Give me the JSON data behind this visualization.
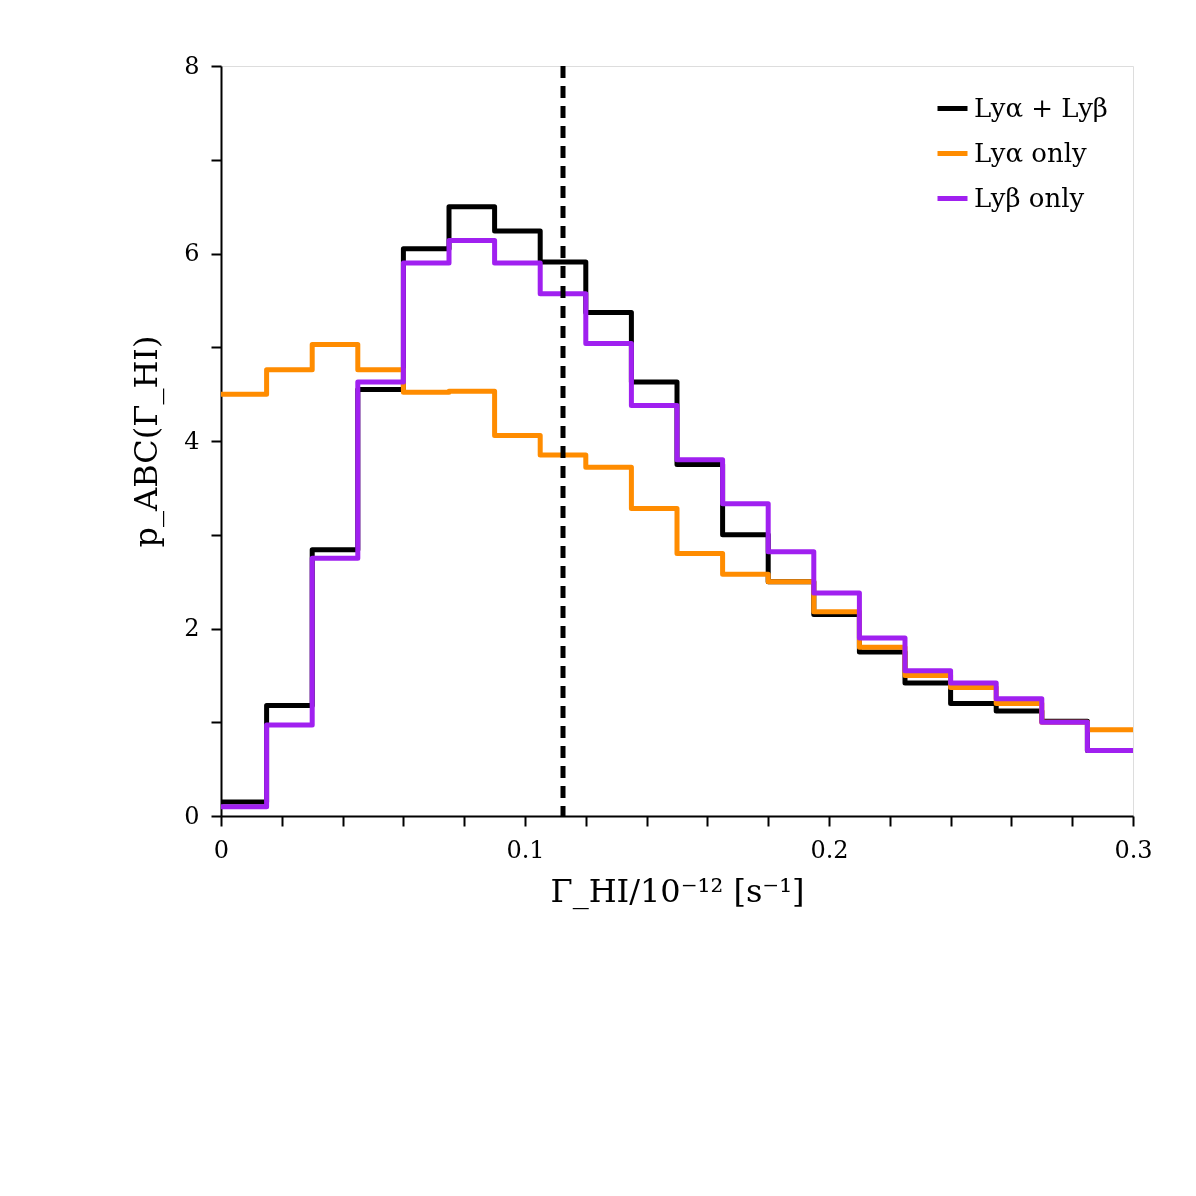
{
  "chart_data": {
    "type": "histogram",
    "xlabel": "Γ_HI/10⁻¹² [s⁻¹]",
    "ylabel": "p_ABC(Γ_HI)",
    "bins": [
      0,
      0.015,
      0.03,
      0.045,
      0.06,
      0.075,
      0.09,
      0.105,
      0.12,
      0.135,
      0.15,
      0.165,
      0.18,
      0.195,
      0.21,
      0.225,
      0.24,
      0.255,
      0.27,
      0.285,
      0.3
    ],
    "series": [
      {
        "name": "Lyα + Lyβ",
        "color": "#000000",
        "values": [
          0.15,
          1.18,
          2.84,
          4.55,
          6.05,
          6.5,
          6.24,
          5.91,
          5.37,
          4.63,
          3.75,
          3.0,
          2.5,
          2.15,
          1.75,
          1.42,
          1.2,
          1.12,
          1.01,
          0.7
        ]
      },
      {
        "name": "Lyα only",
        "color": "#ff8c00",
        "values": [
          4.5,
          4.76,
          5.03,
          4.76,
          4.52,
          4.53,
          4.06,
          3.85,
          3.72,
          3.28,
          2.8,
          2.58,
          2.5,
          2.18,
          1.8,
          1.5,
          1.37,
          1.2,
          1.0,
          0.92
        ]
      },
      {
        "name": "Lyβ only",
        "color": "#a020f0",
        "values": [
          0.1,
          0.97,
          2.75,
          4.63,
          5.9,
          6.14,
          5.9,
          5.57,
          5.04,
          4.38,
          3.8,
          3.33,
          2.82,
          2.38,
          1.9,
          1.55,
          1.42,
          1.25,
          1.0,
          0.7
        ]
      }
    ],
    "xlim": [
      0,
      0.3
    ],
    "xticks": [
      0,
      {
        "value": 0.02,
        "label": null
      },
      {
        "value": 0.04,
        "label": null
      },
      {
        "value": 0.06,
        "label": null
      },
      {
        "value": 0.08,
        "label": null
      },
      0.1,
      {
        "value": 0.12,
        "label": null
      },
      {
        "value": 0.14,
        "label": null
      },
      {
        "value": 0.16,
        "label": null
      },
      {
        "value": 0.18,
        "label": null
      },
      0.2,
      {
        "value": 0.22,
        "label": null
      },
      {
        "value": 0.24,
        "label": null
      },
      {
        "value": 0.26,
        "label": null
      },
      {
        "value": 0.28,
        "label": null
      },
      0.3
    ],
    "ylim": [
      0,
      8
    ],
    "yticks": [
      0,
      {
        "value": 1,
        "label": null
      },
      2,
      {
        "value": 3,
        "label": null
      },
      4,
      {
        "value": 5,
        "label": null
      },
      6,
      {
        "value": 7,
        "label": null
      },
      8
    ],
    "ref_lines": [
      {
        "axis": "x",
        "value": 0.1125,
        "line_style": "dashed",
        "color": "#000000"
      }
    ],
    "grid": false,
    "legend": "top right"
  }
}
